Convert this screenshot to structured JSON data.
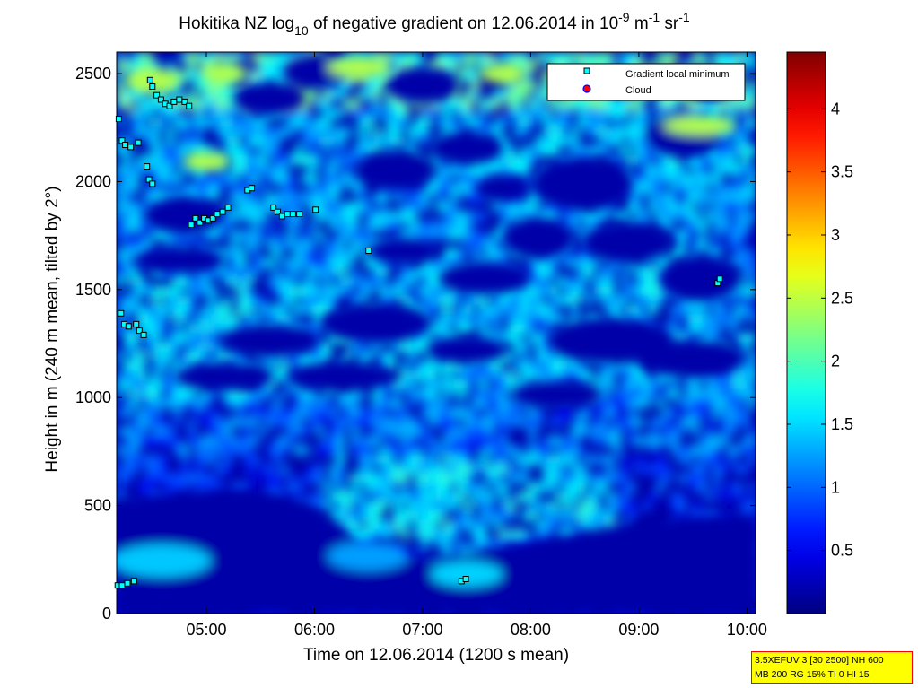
{
  "chart_data": {
    "type": "heatmap",
    "title": {
      "main": "Hokitika NZ log",
      "sub": "10",
      "mid": " of negative gradient on 12.06.2014 in 10",
      "exp1": "-9",
      "unit1": " m",
      "exp2": "-1",
      "unit2": " sr",
      "exp3": "-1"
    },
    "xlabel": "Time on 12.06.2014 (1200 s mean)",
    "ylabel": "Height in m (240 m mean, tilted by 2°)",
    "x_ticks": [
      "05:00",
      "06:00",
      "07:00",
      "08:00",
      "09:00",
      "10:00"
    ],
    "x_tick_hours": [
      5,
      6,
      7,
      8,
      9,
      10
    ],
    "xlim_hours": [
      4.17,
      10.08
    ],
    "y_ticks": [
      "0",
      "500",
      "1000",
      "1500",
      "2000",
      "2500"
    ],
    "y_tick_values": [
      0,
      500,
      1000,
      1500,
      2000,
      2500
    ],
    "ylim": [
      0,
      2600
    ],
    "colorbar": {
      "ticks": [
        "0.5",
        "1",
        "1.5",
        "2",
        "2.5",
        "3",
        "3.5",
        "4"
      ],
      "tick_values": [
        0.5,
        1,
        1.5,
        2,
        2.5,
        3,
        3.5,
        4
      ],
      "range": [
        0,
        4.45
      ],
      "colormap": "jet"
    },
    "legend": {
      "placement": "top-right",
      "entries": [
        {
          "label": "Gradient local minimum",
          "marker": "square",
          "color": "#00ffff"
        },
        {
          "label": "Cloud",
          "marker": "circle",
          "color": "#ff0000"
        }
      ]
    },
    "gradient_local_minimum_points": [
      {
        "t": 4.19,
        "h": 2290
      },
      {
        "t": 4.22,
        "h": 2190
      },
      {
        "t": 4.25,
        "h": 2170
      },
      {
        "t": 4.3,
        "h": 2160
      },
      {
        "t": 4.37,
        "h": 2180
      },
      {
        "t": 4.45,
        "h": 2070
      },
      {
        "t": 4.47,
        "h": 2010
      },
      {
        "t": 4.5,
        "h": 1990
      },
      {
        "t": 4.48,
        "h": 2470
      },
      {
        "t": 4.5,
        "h": 2440
      },
      {
        "t": 4.54,
        "h": 2400
      },
      {
        "t": 4.58,
        "h": 2380
      },
      {
        "t": 4.62,
        "h": 2360
      },
      {
        "t": 4.66,
        "h": 2350
      },
      {
        "t": 4.7,
        "h": 2370
      },
      {
        "t": 4.75,
        "h": 2380
      },
      {
        "t": 4.8,
        "h": 2370
      },
      {
        "t": 4.84,
        "h": 2350
      },
      {
        "t": 4.86,
        "h": 1800
      },
      {
        "t": 4.9,
        "h": 1830
      },
      {
        "t": 4.94,
        "h": 1810
      },
      {
        "t": 4.98,
        "h": 1830
      },
      {
        "t": 5.02,
        "h": 1820
      },
      {
        "t": 5.06,
        "h": 1830
      },
      {
        "t": 5.1,
        "h": 1850
      },
      {
        "t": 5.15,
        "h": 1860
      },
      {
        "t": 5.2,
        "h": 1880
      },
      {
        "t": 5.38,
        "h": 1960
      },
      {
        "t": 5.42,
        "h": 1970
      },
      {
        "t": 5.62,
        "h": 1880
      },
      {
        "t": 5.66,
        "h": 1860
      },
      {
        "t": 5.7,
        "h": 1840
      },
      {
        "t": 5.75,
        "h": 1850
      },
      {
        "t": 5.8,
        "h": 1850
      },
      {
        "t": 5.86,
        "h": 1850
      },
      {
        "t": 6.01,
        "h": 1870
      },
      {
        "t": 6.5,
        "h": 1680
      },
      {
        "t": 4.21,
        "h": 1390
      },
      {
        "t": 4.24,
        "h": 1340
      },
      {
        "t": 4.28,
        "h": 1330
      },
      {
        "t": 4.35,
        "h": 1340
      },
      {
        "t": 4.38,
        "h": 1310
      },
      {
        "t": 4.42,
        "h": 1290
      },
      {
        "t": 4.18,
        "h": 130
      },
      {
        "t": 4.22,
        "h": 130
      },
      {
        "t": 4.27,
        "h": 140
      },
      {
        "t": 4.33,
        "h": 150
      },
      {
        "t": 7.36,
        "h": 150
      },
      {
        "t": 7.4,
        "h": 160
      },
      {
        "t": 9.73,
        "h": 1530
      },
      {
        "t": 9.75,
        "h": 1550
      }
    ],
    "cloud_points": []
  },
  "info_box": {
    "line1": "3.5XEFUV 3 [30 2500] NH 600",
    "line2": "MB 200 RG 15% TI 0 HI 15"
  }
}
